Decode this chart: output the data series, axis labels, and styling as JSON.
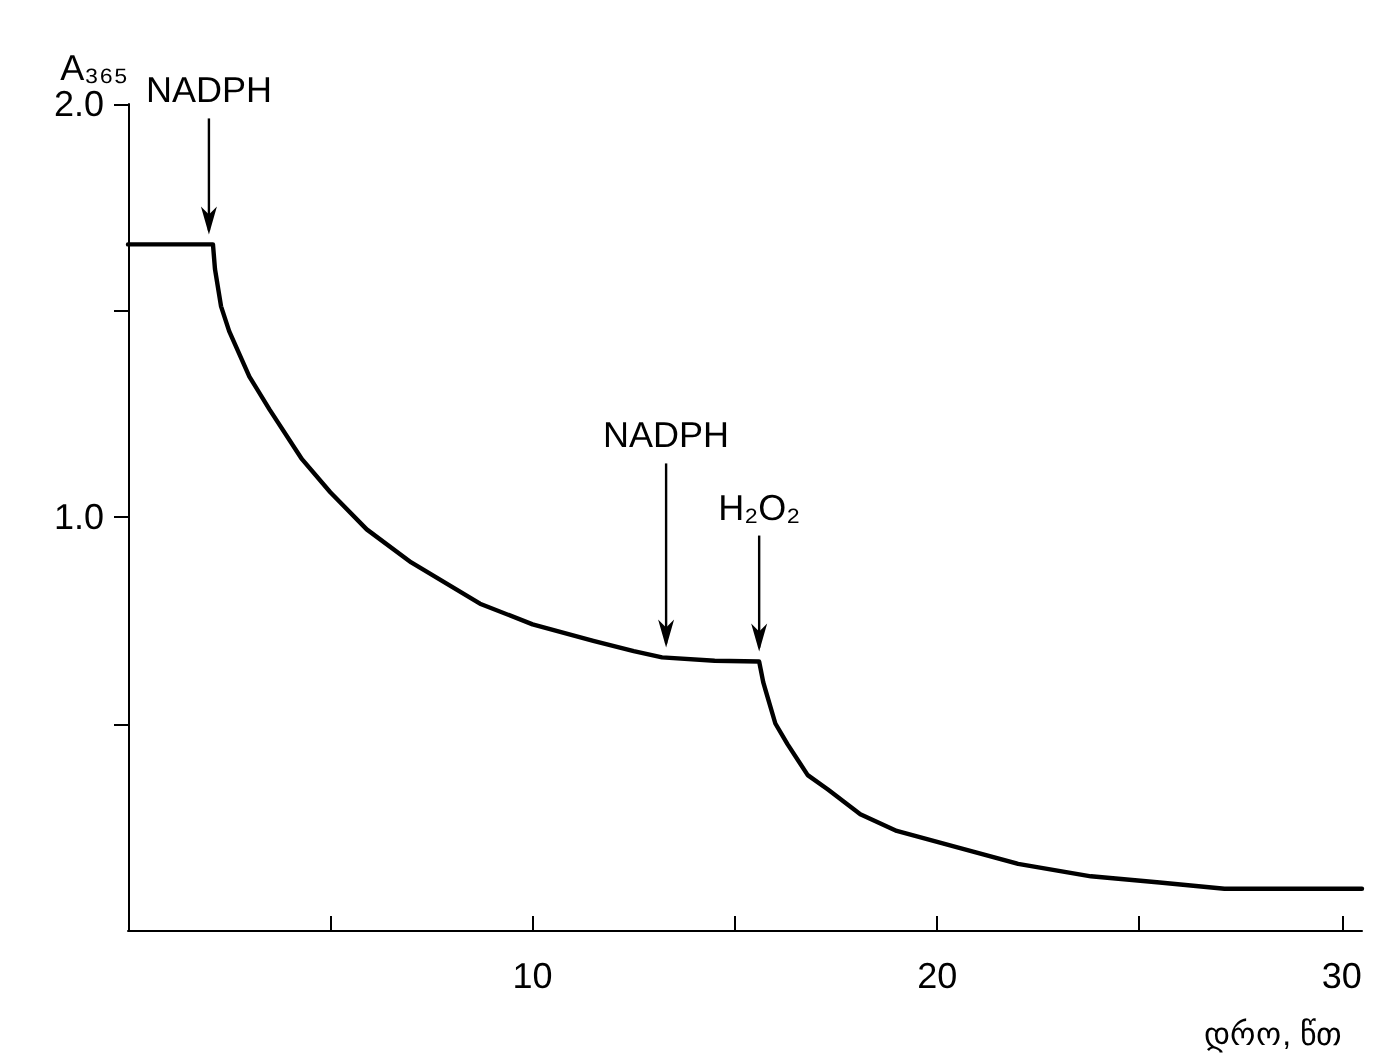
{
  "chart_data": {
    "type": "line",
    "xlabel": "დრო, წთ",
    "ylabel": "A₃₆₅",
    "series": [
      {
        "color": "#000000",
        "x": [
          0,
          2.1,
          2.15,
          2.3,
          2.5,
          3.0,
          3.5,
          4.3,
          5.0,
          5.9,
          7.0,
          8.7,
          10.0,
          11.5,
          12.5,
          13.2,
          14.5,
          15.6,
          15.7,
          15.85,
          16.0,
          16.3,
          16.8,
          17.3,
          18.1,
          19.0,
          20.5,
          22.0,
          23.8,
          25.5,
          27.1,
          30.5
        ],
        "values": [
          1.66,
          1.66,
          1.6,
          1.51,
          1.45,
          1.34,
          1.26,
          1.14,
          1.06,
          0.97,
          0.89,
          0.79,
          0.74,
          0.7,
          0.675,
          0.66,
          0.652,
          0.65,
          0.6,
          0.55,
          0.5,
          0.45,
          0.375,
          0.34,
          0.28,
          0.24,
          0.2,
          0.16,
          0.13,
          0.115,
          0.1,
          0.1
        ]
      }
    ],
    "xlim": [
      0,
      30.5
    ],
    "ylim": [
      0,
      2.0
    ],
    "xticks": [
      {
        "value": 5,
        "label": null
      },
      10,
      {
        "value": 15,
        "label": null
      },
      20,
      {
        "value": 25,
        "label": null
      },
      30
    ],
    "yticks": [
      {
        "value": 0.5,
        "label": null
      },
      {
        "value": 1,
        "label": "1.0"
      },
      {
        "value": 1.5,
        "label": null
      },
      {
        "value": 2,
        "label": "2.0"
      }
    ],
    "annotations": [
      {
        "text": "NADPH",
        "x": 2.0,
        "y": 1.66
      },
      {
        "text": "NADPH",
        "x": 13.3,
        "y": 0.66
      },
      {
        "text": "H₂O₂",
        "x": 15.6,
        "y": 0.65
      }
    ],
    "grid": false,
    "marker": "none",
    "line_style": "solid"
  }
}
